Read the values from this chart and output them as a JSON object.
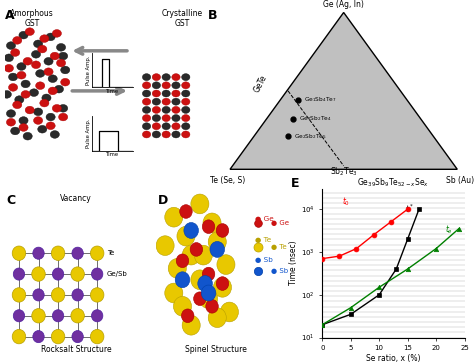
{
  "panel_e": {
    "title": "Ge$_{39}$Sb$_9$Te$_{52-x}$Se$_x$",
    "xlabel": "Se ratio, x (%)",
    "ylabel": "Time (nsec)",
    "xlim": [
      0,
      25
    ],
    "ylim": [
      10,
      30000
    ],
    "red_x": [
      0,
      3,
      6,
      9,
      12,
      15
    ],
    "red_y": [
      700,
      800,
      1200,
      2500,
      5000,
      10000
    ],
    "black_x": [
      0,
      5,
      10,
      13,
      15,
      17
    ],
    "black_y": [
      20,
      35,
      100,
      400,
      2000,
      10000
    ],
    "green_x": [
      0,
      5,
      10,
      15,
      20,
      24
    ],
    "green_y": [
      20,
      50,
      150,
      400,
      1200,
      3500
    ],
    "red_label": "t$_0$",
    "black_label": "t$^*$",
    "green_label": "t$_e$",
    "yticks": [
      10,
      100,
      1000,
      10000
    ],
    "ytick_labels": [
      "10$^1$",
      "10$^2$",
      "10$^3$",
      "10$^4$"
    ],
    "xticks": [
      0,
      5,
      10,
      15,
      20,
      25
    ]
  }
}
